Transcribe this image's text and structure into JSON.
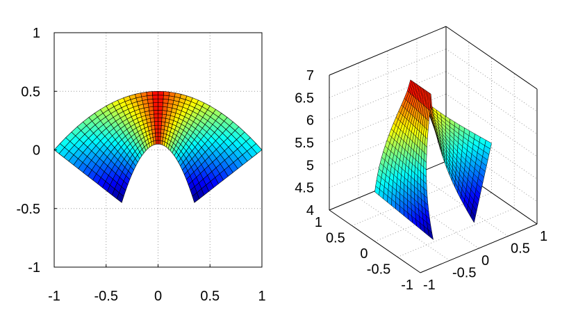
{
  "chart_data": [
    {
      "type": "surface",
      "view": "top (2D)",
      "colormap": "jet",
      "grid": true,
      "xlim": [
        -1,
        1
      ],
      "ylim": [
        -1,
        1
      ],
      "x_ticks": [
        "-1",
        "-0.5",
        "0",
        "0.5",
        "1"
      ],
      "y_ticks": [
        "1",
        "0.5",
        "0",
        "-0.5",
        "-1"
      ],
      "surface": {
        "outer_boundary": [
          [
            -1,
            0
          ],
          [
            0,
            0.5
          ],
          [
            1,
            0
          ]
        ],
        "inner_boundary": [
          [
            -0.35,
            -0.45
          ],
          [
            0,
            0.05
          ],
          [
            0.35,
            -0.45
          ]
        ],
        "z_outer_ends": 5.1,
        "z_center": 6.7,
        "z_inner_tips": 4.0
      }
    },
    {
      "type": "surface",
      "view": "3D",
      "colormap": "jet",
      "grid": true,
      "xlim": [
        -1,
        1
      ],
      "ylim": [
        -1,
        1
      ],
      "zlim": [
        4,
        7
      ],
      "x_ticks": [
        "-1",
        "-0.5",
        "0",
        "0.5",
        "1"
      ],
      "y_ticks": [
        "-1",
        "-0.5",
        "0",
        "0.5",
        "1"
      ],
      "z_ticks": [
        "4",
        "4.5",
        "5",
        "5.5",
        "6",
        "6.5",
        "7"
      ],
      "surface": "same as left plot"
    }
  ]
}
